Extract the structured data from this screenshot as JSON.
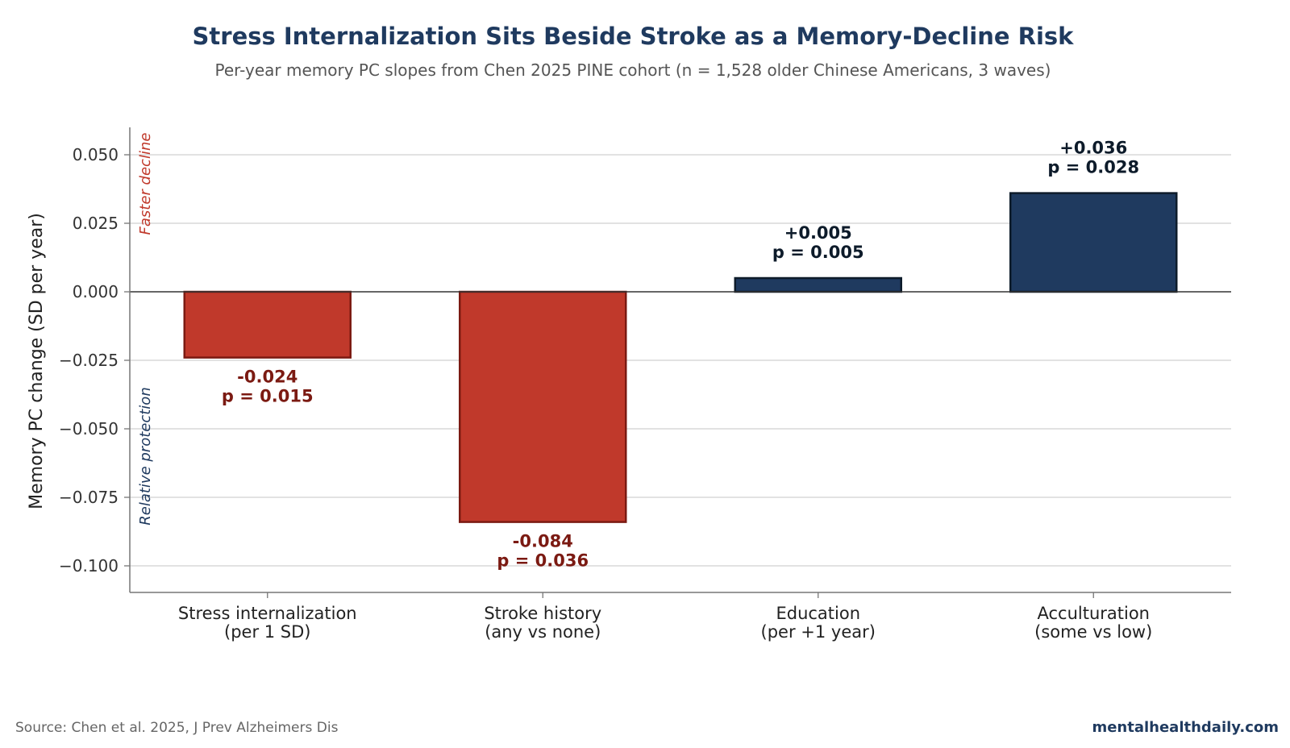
{
  "chart_data": {
    "type": "bar",
    "title": "Stress Internalization Sits Beside Stroke as a Memory-Decline Risk",
    "subtitle": "Per-year memory PC slopes from Chen 2025 PINE cohort (n = 1,528 older Chinese Americans, 3 waves)",
    "ylabel": "Memory PC change (SD per year)",
    "ylim": [
      -0.11,
      0.06
    ],
    "yticks": [
      0.05,
      0.025,
      0.0,
      -0.025,
      -0.05,
      -0.075,
      -0.1
    ],
    "ytick_labels": [
      "0.050",
      "0.025",
      "0.000",
      "−0.025",
      "−0.050",
      "−0.075",
      "−0.100"
    ],
    "grid": true,
    "bars": [
      {
        "line1": "Stress internalization",
        "line2": "(per 1 SD)",
        "value": -0.024,
        "label": "-0.024",
        "p": "p = 0.015"
      },
      {
        "line1": "Stroke history",
        "line2": "(any vs none)",
        "value": -0.084,
        "label": "-0.084",
        "p": "p = 0.036"
      },
      {
        "line1": "Education",
        "line2": "(per +1 year)",
        "value": 0.005,
        "label": "+0.005",
        "p": "p = 0.005"
      },
      {
        "line1": "Acculturation",
        "line2": "(some vs low)",
        "value": 0.036,
        "label": "+0.036",
        "p": "p = 0.028"
      }
    ],
    "annotations": {
      "top": "Faster decline",
      "bottom": "Relative protection"
    },
    "colors": {
      "negative_fill": "#c0392b",
      "negative_edge": "#7b1a12",
      "negative_text": "#7b1a12",
      "positive_fill": "#1f3a5f",
      "positive_edge": "#0d1b2a",
      "positive_text": "#0d1b2a",
      "top_annot": "#c0392b",
      "bottom_annot": "#1f3a5f"
    }
  },
  "footer": {
    "source": "Source: Chen et al. 2025, J Prev Alzheimers Dis",
    "brand": "mentalhealthdaily.com"
  }
}
